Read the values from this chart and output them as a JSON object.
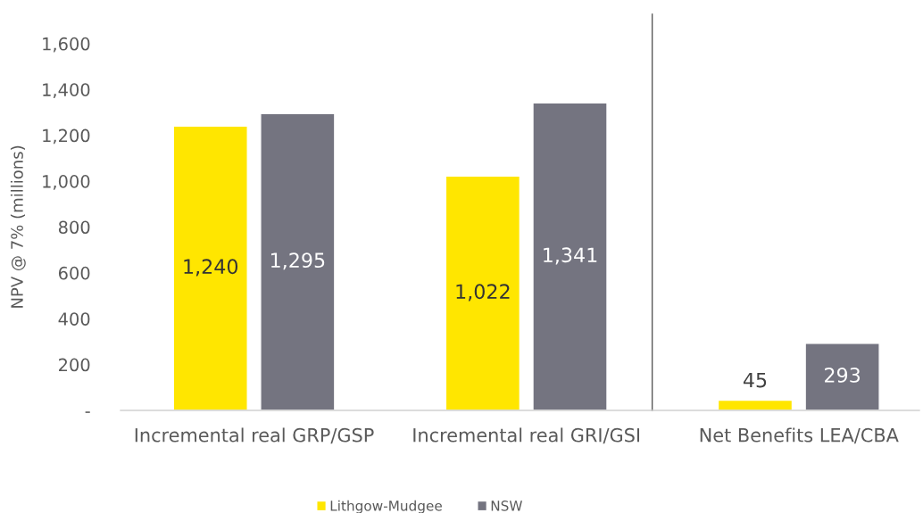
{
  "chart_data": [
    {
      "type": "bar",
      "ylabel": "NPV @ 7% (millions)",
      "categories": [
        "Incremental real GRP/GSP",
        "Incremental real GRI/GSI"
      ],
      "series": [
        {
          "name": "Lithgow-Mudgee",
          "color": "#ffe600",
          "values": [
            1240,
            1022
          ],
          "value_labels": [
            "1,240",
            "1,022"
          ]
        },
        {
          "name": "NSW",
          "color": "#747480",
          "values": [
            1295,
            1341
          ],
          "value_labels": [
            "1,295",
            "1,341"
          ]
        }
      ],
      "ylim": [
        0,
        1600
      ],
      "yticks": [
        {
          "value": 0,
          "label": "-"
        },
        200,
        400,
        600,
        800,
        {
          "value": 1000,
          "label": "1,000"
        },
        {
          "value": 1200,
          "label": "1,200"
        },
        {
          "value": 1400,
          "label": "1,400"
        },
        {
          "value": 1600,
          "label": "1,600"
        }
      ],
      "legend": "bottom"
    },
    {
      "type": "bar",
      "categories": [
        "Net Benefits LEA/CBA"
      ],
      "series": [
        {
          "name": "Lithgow-Mudgee",
          "color": "#ffe600",
          "values": [
            45
          ],
          "value_labels": [
            "45"
          ]
        },
        {
          "name": "NSW",
          "color": "#747480",
          "values": [
            293
          ],
          "value_labels": [
            "293"
          ]
        }
      ],
      "ylim": [
        0,
        1600
      ],
      "tick_labels": "x"
    }
  ]
}
